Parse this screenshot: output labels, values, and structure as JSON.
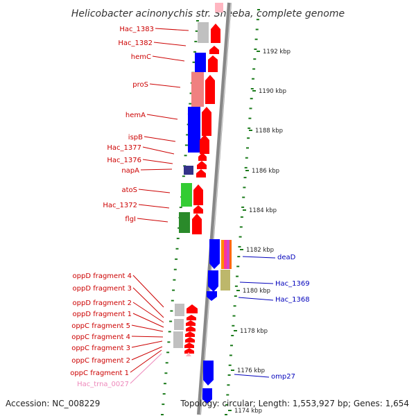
{
  "title": "Helicobacter acinonychis str. Sheeba, complete genome",
  "footer": {
    "accession": "Accession: NC_008229",
    "summary": "Topology: circular; Length: 1,553,927 bp; Genes: 1,654"
  },
  "ticks": [
    "1192 kbp",
    "1190 kbp",
    "1188 kbp",
    "1186 kbp",
    "1184 kbp",
    "1182 kbp",
    "1180 kbp",
    "1178 kbp",
    "1176 kbp",
    "1174 kbp"
  ],
  "left_labels": [
    "Hac_1383",
    "Hac_1382",
    "hemC",
    "proS",
    "hemA",
    "ispB",
    "Hac_1377",
    "Hac_1376",
    "napA",
    "atoS",
    "Hac_1372",
    "flgI",
    "oppD fragment 4",
    "oppD fragment 3",
    "oppD fragment 2",
    "oppD fragment 1",
    "oppC fragment 5",
    "oppC fragment 4",
    "oppC fragment 3",
    "oppC fragment 2",
    "oppC fragment 1",
    "Hac_trna_0027"
  ],
  "right_labels": [
    "deaD",
    "Hac_1369",
    "Hac_1368",
    "omp27"
  ],
  "colors": {
    "forward_gene": "#ff0000",
    "reverse_gene": "#0000ff",
    "left_label": "#cc0000",
    "right_label": "#0000bb",
    "trna_label": "#ee88bb",
    "backbone": "#888888",
    "tick_mark": "#1a7a1a"
  }
}
